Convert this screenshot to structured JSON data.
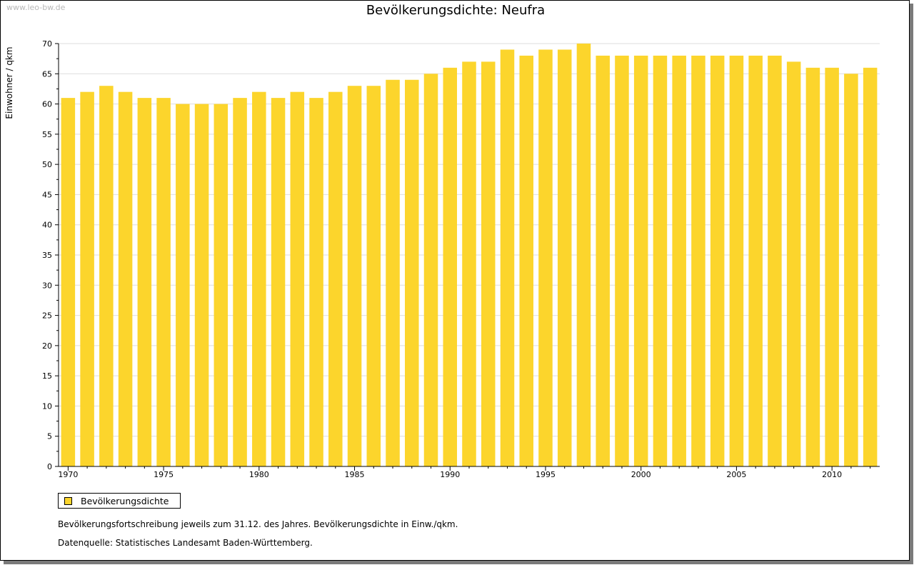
{
  "header": {
    "watermark": "www.leo-bw.de"
  },
  "chart_data": {
    "type": "bar",
    "title": "Bevölkerungsdichte: Neufra",
    "ylabel": "Einwohner / qkm",
    "xlabel": "",
    "ylim": [
      0,
      70
    ],
    "yticks": [
      0,
      5,
      10,
      15,
      20,
      25,
      30,
      35,
      40,
      45,
      50,
      55,
      60,
      65,
      70
    ],
    "xticks": [
      1970,
      1975,
      1980,
      1985,
      1990,
      1995,
      2000,
      2005,
      2010
    ],
    "grid": true,
    "legend_position": "bottom-left",
    "bar_color": "#FCD52C",
    "categories": [
      1970,
      1971,
      1972,
      1973,
      1974,
      1975,
      1976,
      1977,
      1978,
      1979,
      1980,
      1981,
      1982,
      1983,
      1984,
      1985,
      1986,
      1987,
      1988,
      1989,
      1990,
      1991,
      1992,
      1993,
      1994,
      1995,
      1996,
      1997,
      1998,
      1999,
      2000,
      2001,
      2002,
      2003,
      2004,
      2005,
      2006,
      2007,
      2008,
      2009,
      2010,
      2011,
      2012
    ],
    "series": [
      {
        "name": "Bevölkerungsdichte",
        "values": [
          61,
          62,
          63,
          62,
          61,
          61,
          60,
          60,
          60,
          61,
          62,
          61,
          62,
          61,
          62,
          63,
          63,
          64,
          64,
          65,
          66,
          67,
          67,
          69,
          68,
          69,
          69,
          70,
          68,
          68,
          68,
          68,
          68,
          68,
          68,
          68,
          68,
          68,
          67,
          66,
          66,
          65,
          66
        ]
      }
    ]
  },
  "notes": {
    "line1": "Bevölkerungsfortschreibung jeweils zum 31.12. des Jahres. Bevölkerungsdichte in Einw./qkm.",
    "line2": "Datenquelle: Statistisches Landesamt Baden-Württemberg."
  }
}
